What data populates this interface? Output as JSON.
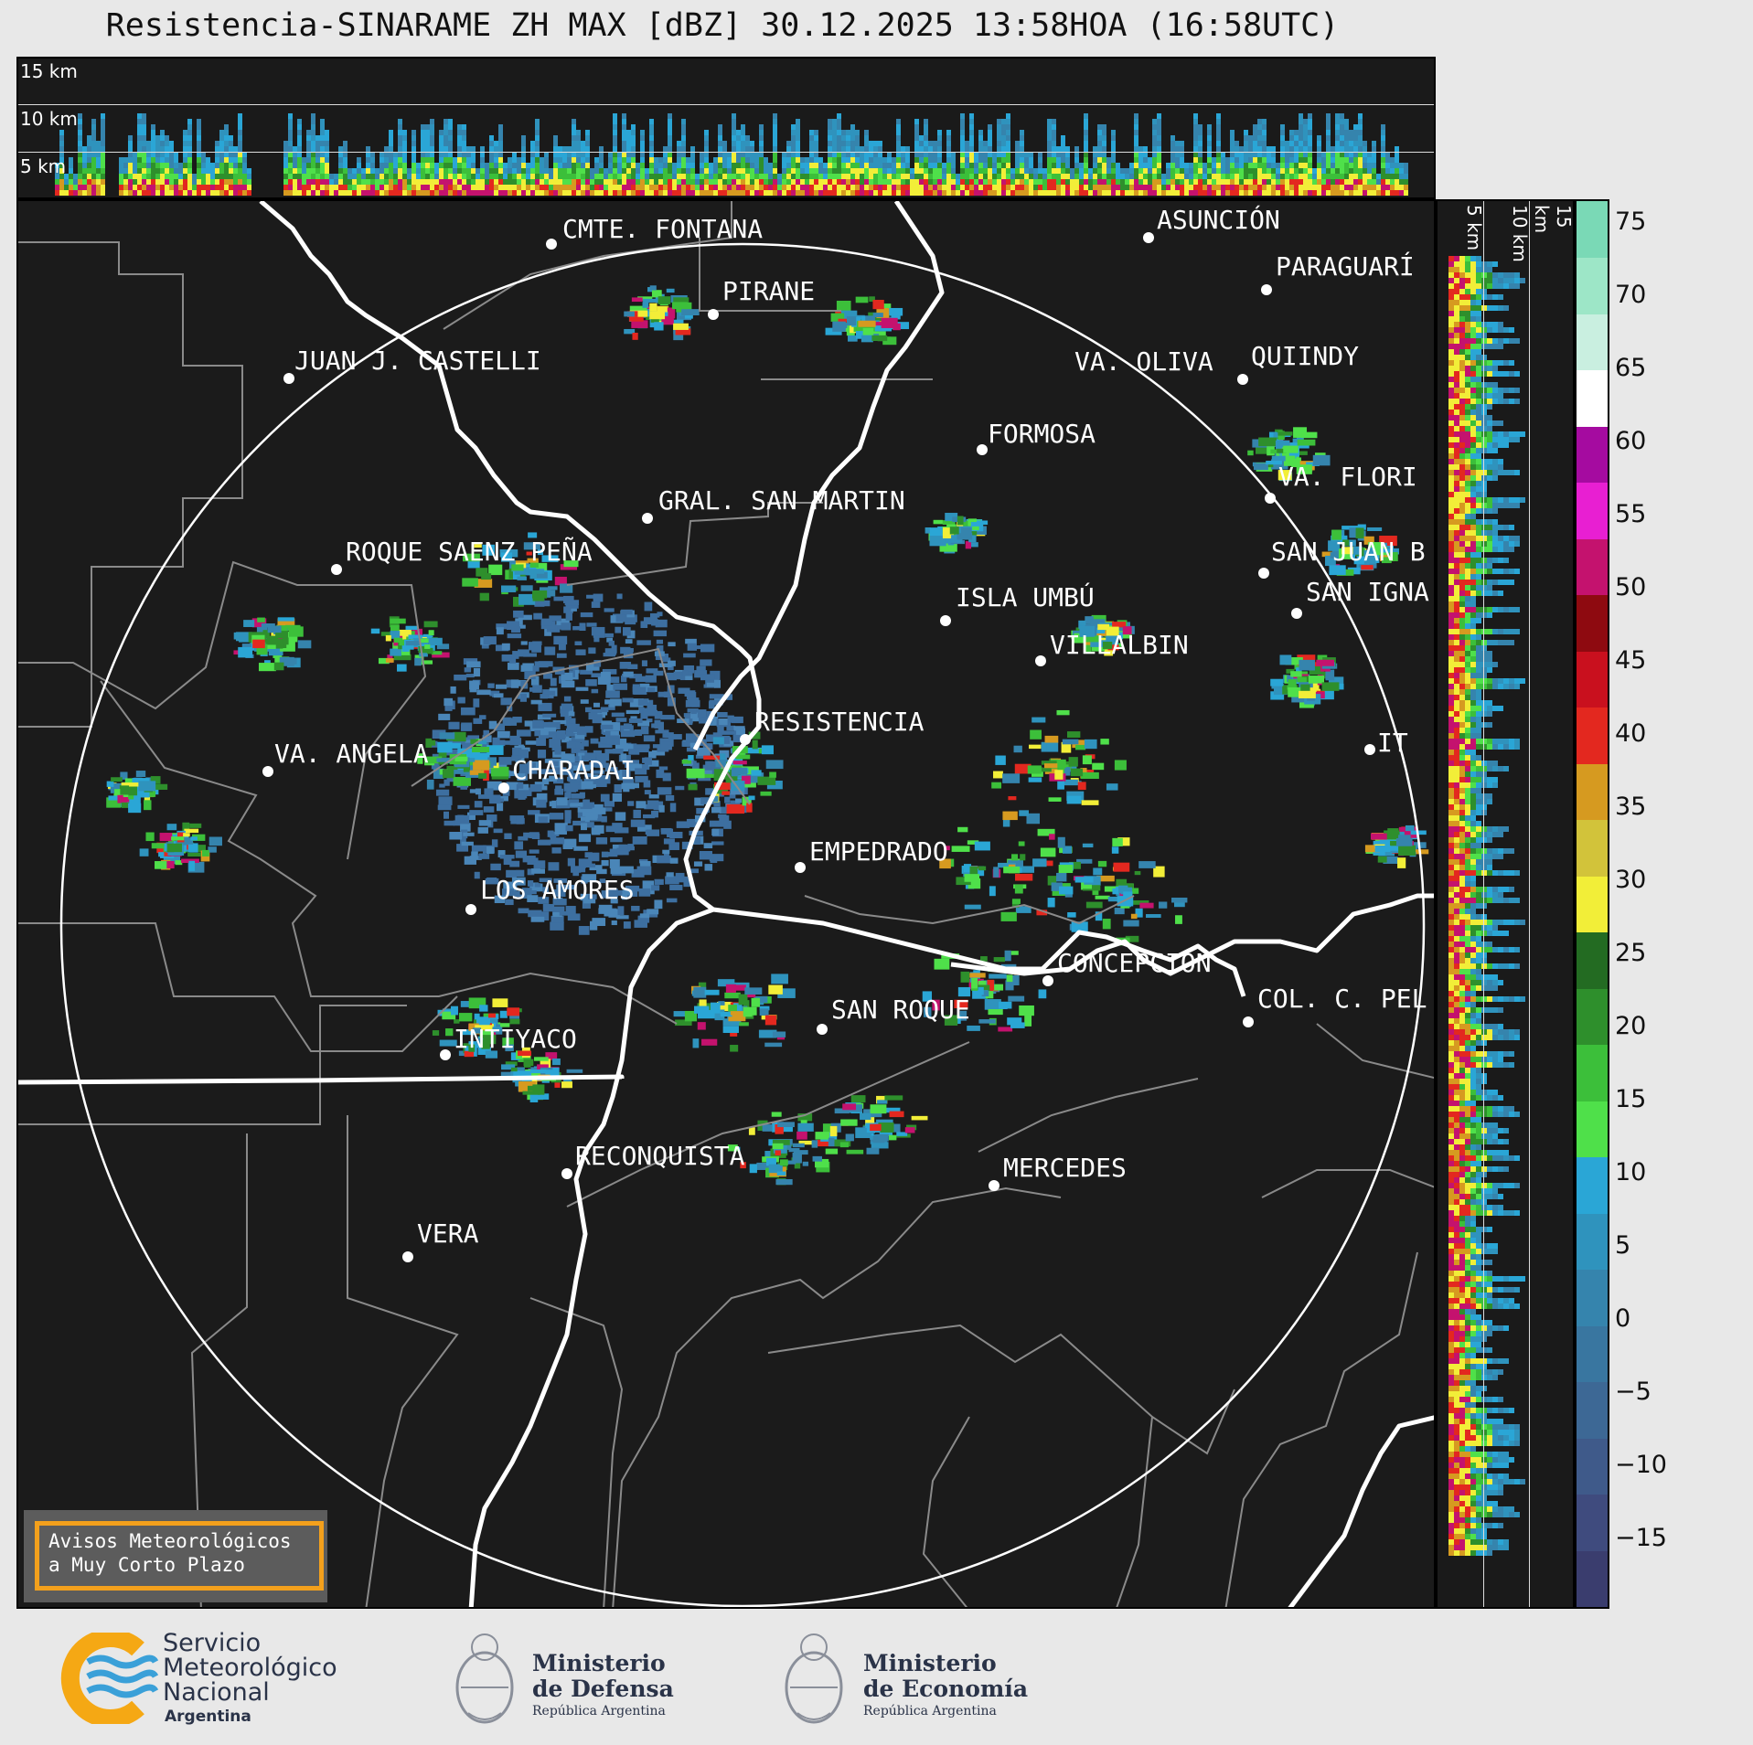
{
  "title": "Resistencia-SINARAME ZH MAX [dBZ] 30.12.2025 13:58HOA (16:58UTC)",
  "altitude_labels": [
    "15 km",
    "10 km",
    "5 km"
  ],
  "colorbar": {
    "ticks": [
      "75",
      "70",
      "65",
      "60",
      "55",
      "50",
      "45",
      "40",
      "35",
      "30",
      "25",
      "20",
      "15",
      "10",
      "5",
      "0",
      "−5",
      "−10",
      "−15"
    ],
    "bands": [
      {
        "color": "#3a3d6e"
      },
      {
        "color": "#3f4b7e"
      },
      {
        "color": "#3f5a8a"
      },
      {
        "color": "#3d6895"
      },
      {
        "color": "#3976a0"
      },
      {
        "color": "#3584ad"
      },
      {
        "color": "#2f93bd"
      },
      {
        "color": "#2aa6d6"
      },
      {
        "color": "#4fe04a"
      },
      {
        "color": "#3cbf3a"
      },
      {
        "color": "#2e8f2c"
      },
      {
        "color": "#236b22"
      },
      {
        "color": "#f2ee38"
      },
      {
        "color": "#d2c33a"
      },
      {
        "color": "#d69a20"
      },
      {
        "color": "#e3281f"
      },
      {
        "color": "#c9101e"
      },
      {
        "color": "#8e0a10"
      },
      {
        "color": "#c4126e"
      },
      {
        "color": "#e81fd2"
      },
      {
        "color": "#a50ba0"
      },
      {
        "color": "#ffffff"
      },
      {
        "color": "#c9efe0"
      },
      {
        "color": "#9de6c7"
      },
      {
        "color": "#7ad9b6"
      }
    ]
  },
  "cities": [
    {
      "name": "CMTE. FONTANA"
    },
    {
      "name": "ASUNCIÓN"
    },
    {
      "name": "PIRANE"
    },
    {
      "name": "PARAGUARÍ"
    },
    {
      "name": "JUAN J. CASTELLI"
    },
    {
      "name": "VA. OLIVA"
    },
    {
      "name": "QUIINDY"
    },
    {
      "name": "FORMOSA"
    },
    {
      "name": "VA. FLORI"
    },
    {
      "name": "GRAL. SAN MARTIN"
    },
    {
      "name": "SAN JUAN B"
    },
    {
      "name": "ROQUE SAENZ PEÑA"
    },
    {
      "name": "SAN IGNA"
    },
    {
      "name": "ISLA UMBÚ"
    },
    {
      "name": "VILLALBIN"
    },
    {
      "name": "RESISTENCIA"
    },
    {
      "name": "IT"
    },
    {
      "name": "VA. ANGELA"
    },
    {
      "name": "CHARADAI"
    },
    {
      "name": "EMPEDRADO"
    },
    {
      "name": "LOS AMORES"
    },
    {
      "name": "CONCEPCIÓN"
    },
    {
      "name": "SAN ROQUE"
    },
    {
      "name": "COL. C. PEL"
    },
    {
      "name": "INTIYACO"
    },
    {
      "name": "RECONQUISTA"
    },
    {
      "name": "MERCEDES"
    },
    {
      "name": "VERA"
    }
  ],
  "avisos": {
    "line1": "Avisos Meteorológicos",
    "line2": "a Muy Corto Plazo"
  },
  "logos": {
    "smn": {
      "line1": "Servicio",
      "line2": "Meteorológico",
      "line3": "Nacional",
      "line4": "Argentina"
    },
    "defensa": {
      "line1": "Ministerio",
      "line2": "de Defensa",
      "line3": "República Argentina"
    },
    "economia": {
      "line1": "Ministerio",
      "line2": "de Economía",
      "line3": "República Argentina"
    }
  }
}
